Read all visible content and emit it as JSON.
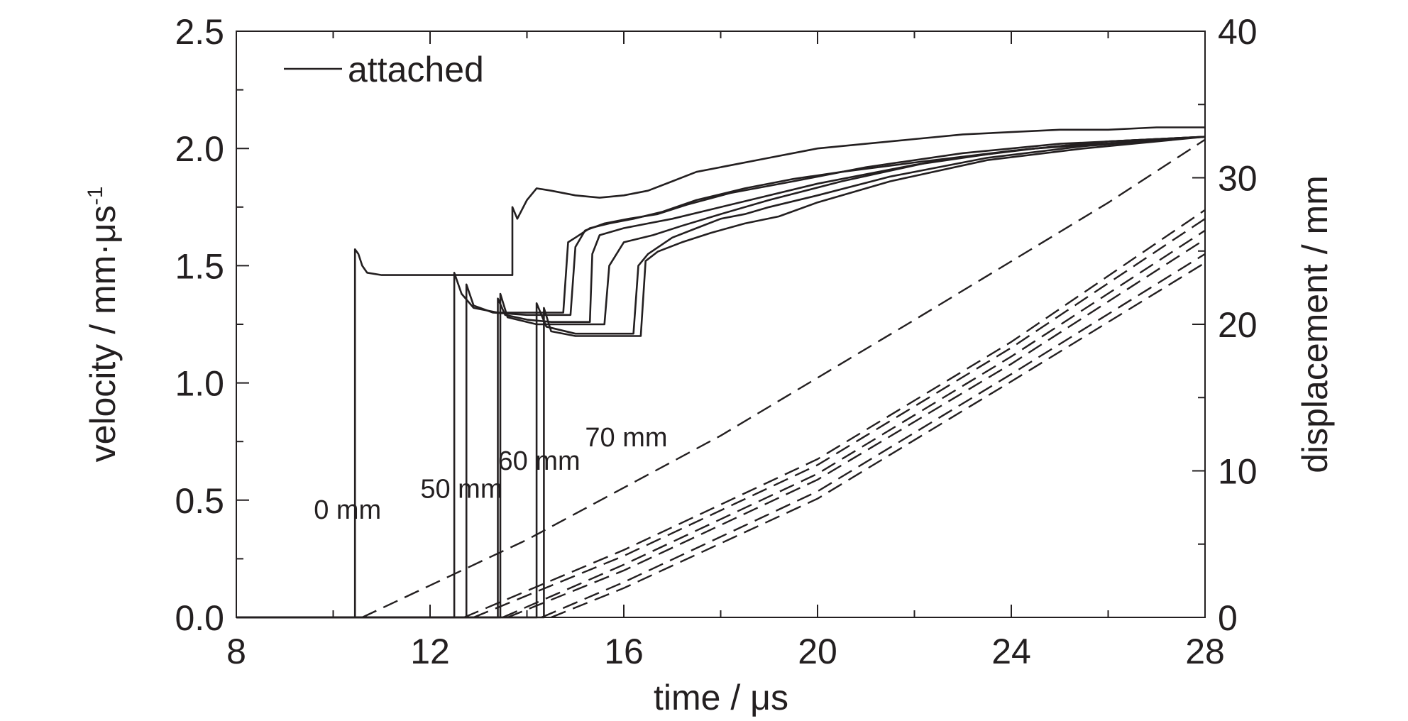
{
  "chart_data": {
    "type": "line",
    "xlabel": "time / μs",
    "ylabel_left": "velocity / mm·μs",
    "ylabel_left_sup": "-1",
    "ylabel_right": "displacement / mm",
    "xlim": [
      8,
      28
    ],
    "ylim_left": [
      0.0,
      2.5
    ],
    "ylim_right": [
      0,
      40
    ],
    "x_ticks": [
      "8",
      "12",
      "16",
      "20",
      "24",
      "28"
    ],
    "y_left_ticks": [
      "0.0",
      "0.5",
      "1.0",
      "1.5",
      "2.0",
      "2.5"
    ],
    "y_right_ticks": [
      "0",
      "10",
      "20",
      "30",
      "40"
    ],
    "grid": false,
    "legend": {
      "position": "top-left",
      "entries": [
        "attached"
      ]
    },
    "annotations": [
      {
        "text": "0 mm",
        "x": 9.6,
        "y": 0.42
      },
      {
        "text": "50 mm",
        "x": 11.8,
        "y": 0.51
      },
      {
        "text": "60 mm",
        "x": 13.4,
        "y": 0.63
      },
      {
        "text": "70 mm",
        "x": 15.2,
        "y": 0.73
      }
    ],
    "velocity_series": [
      {
        "x": [
          8.0,
          10.45,
          10.45,
          10.52,
          10.6,
          10.7,
          11.0,
          11.5,
          12.0,
          12.5,
          13.0,
          13.5,
          13.7,
          13.7,
          13.8,
          14.0,
          14.2,
          14.5,
          15.0,
          15.5,
          16.0,
          16.5,
          17.0,
          17.5,
          18.0,
          19.0,
          20.0,
          21.0,
          22.0,
          23.0,
          24.0,
          25.0,
          26.0,
          27.0,
          28.0
        ],
        "y": [
          0.0,
          0.0,
          1.57,
          1.55,
          1.5,
          1.47,
          1.46,
          1.46,
          1.46,
          1.46,
          1.46,
          1.46,
          1.46,
          1.75,
          1.7,
          1.78,
          1.83,
          1.82,
          1.8,
          1.79,
          1.8,
          1.82,
          1.86,
          1.9,
          1.92,
          1.96,
          2.0,
          2.02,
          2.04,
          2.06,
          2.07,
          2.08,
          2.08,
          2.09,
          2.09
        ]
      },
      {
        "x": [
          8.0,
          12.5,
          12.5,
          12.65,
          12.9,
          13.4,
          14.0,
          14.5,
          14.75,
          14.85,
          15.0,
          15.3,
          15.7,
          16.2,
          16.8,
          17.5,
          18.5,
          19.5,
          20.5,
          22.0,
          24.0,
          26.0,
          28.0
        ],
        "y": [
          0.0,
          0.0,
          1.47,
          1.38,
          1.32,
          1.3,
          1.3,
          1.3,
          1.3,
          1.6,
          1.62,
          1.66,
          1.68,
          1.7,
          1.73,
          1.78,
          1.83,
          1.87,
          1.9,
          1.94,
          1.99,
          2.03,
          2.05
        ]
      },
      {
        "x": [
          8.0,
          12.75,
          12.75,
          12.9,
          13.3,
          14.0,
          14.5,
          14.9,
          15.0,
          15.2,
          15.6,
          16.1,
          16.7,
          17.3,
          18.2,
          19.5,
          21.0,
          23.0,
          25.0,
          28.0
        ],
        "y": [
          0.0,
          0.0,
          1.42,
          1.33,
          1.3,
          1.29,
          1.29,
          1.29,
          1.58,
          1.65,
          1.68,
          1.7,
          1.72,
          1.76,
          1.81,
          1.86,
          1.92,
          1.98,
          2.02,
          2.05
        ]
      },
      {
        "x": [
          8.0,
          13.4,
          13.4,
          13.55,
          14.0,
          14.5,
          15.0,
          15.3,
          15.35,
          15.5,
          16.0,
          16.5,
          17.0,
          17.8,
          18.8,
          20.0,
          22.0,
          24.0,
          26.0,
          28.0
        ],
        "y": [
          0.0,
          0.0,
          1.36,
          1.29,
          1.27,
          1.26,
          1.26,
          1.26,
          1.55,
          1.63,
          1.66,
          1.68,
          1.7,
          1.74,
          1.79,
          1.85,
          1.93,
          1.99,
          2.03,
          2.05
        ]
      },
      {
        "x": [
          8.0,
          13.45,
          13.45,
          13.6,
          14.2,
          14.8,
          15.4,
          15.6,
          15.7,
          16.0,
          16.6,
          17.2,
          18.0,
          19.0,
          20.5,
          22.5,
          24.5,
          28.0
        ],
        "y": [
          0.0,
          0.0,
          1.38,
          1.28,
          1.25,
          1.25,
          1.25,
          1.25,
          1.5,
          1.6,
          1.63,
          1.67,
          1.72,
          1.78,
          1.86,
          1.95,
          2.0,
          2.05
        ]
      },
      {
        "x": [
          8.0,
          14.2,
          14.2,
          14.4,
          15.0,
          15.5,
          16.0,
          16.2,
          16.3,
          16.5,
          17.0,
          17.5,
          18.0,
          18.5,
          19.0,
          20.0,
          21.5,
          23.5,
          25.5,
          28.0
        ],
        "y": [
          0.0,
          0.0,
          1.34,
          1.24,
          1.21,
          1.21,
          1.21,
          1.21,
          1.5,
          1.55,
          1.62,
          1.66,
          1.7,
          1.72,
          1.75,
          1.8,
          1.88,
          1.96,
          2.01,
          2.05
        ]
      },
      {
        "x": [
          8.0,
          14.35,
          14.35,
          14.5,
          15.0,
          15.6,
          16.1,
          16.35,
          16.45,
          16.7,
          17.2,
          17.8,
          18.5,
          19.2,
          20.0,
          21.5,
          23.5,
          25.5,
          28.0
        ],
        "y": [
          0.0,
          0.0,
          1.32,
          1.22,
          1.2,
          1.2,
          1.2,
          1.2,
          1.52,
          1.56,
          1.6,
          1.64,
          1.68,
          1.71,
          1.77,
          1.86,
          1.95,
          2.0,
          2.05
        ]
      }
    ],
    "displacement_series": [
      {
        "x": [
          10.6,
          14.0,
          18.0,
          22.0,
          26.0,
          28.0
        ],
        "y": [
          0.0,
          5.3,
          12.4,
          20.3,
          28.3,
          32.6
        ]
      },
      {
        "x": [
          12.7,
          16.0,
          20.0,
          24.0,
          28.0
        ],
        "y": [
          0.0,
          4.6,
          10.8,
          18.8,
          27.8
        ]
      },
      {
        "x": [
          12.9,
          16.0,
          20.0,
          24.0,
          28.0
        ],
        "y": [
          0.0,
          4.2,
          10.4,
          18.4,
          27.2
        ]
      },
      {
        "x": [
          13.5,
          16.0,
          20.0,
          24.0,
          28.0
        ],
        "y": [
          0.0,
          3.6,
          9.8,
          17.8,
          26.4
        ]
      },
      {
        "x": [
          13.6,
          16.0,
          20.0,
          24.0,
          28.0
        ],
        "y": [
          0.0,
          3.2,
          9.4,
          17.3,
          25.8
        ]
      },
      {
        "x": [
          14.3,
          16.0,
          20.0,
          24.0,
          28.0
        ],
        "y": [
          0.0,
          2.4,
          8.6,
          16.6,
          24.8
        ]
      },
      {
        "x": [
          14.5,
          16.0,
          20.0,
          24.0,
          28.0
        ],
        "y": [
          0.0,
          2.0,
          8.1,
          16.1,
          24.2
        ]
      }
    ]
  }
}
